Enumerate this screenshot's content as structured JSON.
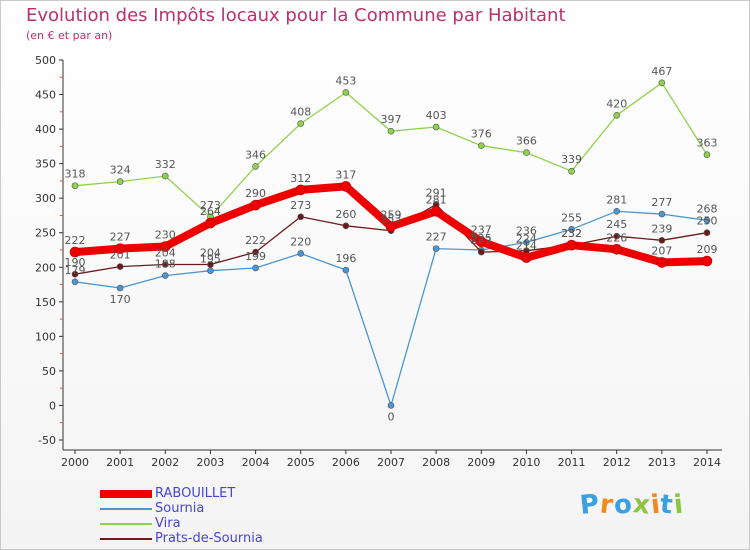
{
  "title": "Evolution des Impôts locaux pour la Commune par Habitant",
  "subtitle": "(en € et par an)",
  "logo_text": "Proxiti",
  "chart_data": {
    "type": "line",
    "x": [
      "2000",
      "2001",
      "2002",
      "2003",
      "2004",
      "2005",
      "2006",
      "2007",
      "2008",
      "2009",
      "2010",
      "2011",
      "2012",
      "2013",
      "2014"
    ],
    "yticks": [
      500,
      450,
      400,
      350,
      300,
      250,
      200,
      150,
      100,
      50,
      0,
      -50
    ],
    "ylim": [
      -50,
      500
    ],
    "grid": false,
    "legend_position": "bottom-left",
    "series": [
      {
        "name": "RABOUILLET",
        "color": "#ee0000",
        "values": [
          222,
          227,
          230,
          264,
          290,
          312,
          317,
          259,
          281,
          237,
          214,
          232,
          226,
          207,
          209
        ],
        "labels": [
          "222",
          "227",
          "230",
          "264",
          "290",
          "312",
          "317",
          "259",
          "281",
          "237",
          "214",
          "232",
          "226",
          "207",
          "209"
        ]
      },
      {
        "name": "Sournia",
        "color": "#4b96d2",
        "values": [
          179,
          170,
          188,
          195,
          199,
          220,
          196,
          0,
          227,
          225,
          236,
          255,
          281,
          277,
          268
        ],
        "labels": [
          "179",
          "170",
          "188",
          "195",
          "199",
          "220",
          "196",
          "0",
          "227",
          "225",
          "236",
          "255",
          "281",
          "277",
          "268"
        ]
      },
      {
        "name": "Vira",
        "color": "#8ed24b",
        "values": [
          318,
          324,
          332,
          273,
          346,
          408,
          453,
          397,
          403,
          376,
          366,
          339,
          420,
          467,
          363
        ],
        "labels": [
          "318",
          "324",
          "332",
          "273",
          "346",
          "408",
          "453",
          "397",
          "403",
          "376",
          "366",
          "339",
          "420",
          "467",
          "363"
        ]
      },
      {
        "name": "Prats-de-Sournia",
        "color": "#6b1a1a",
        "values": [
          190,
          201,
          204,
          204,
          222,
          273,
          260,
          253,
          291,
          222,
          224,
          232,
          245,
          239,
          250
        ],
        "labels": [
          "190",
          "201",
          "204",
          "204",
          "222",
          "273",
          "260",
          "253",
          "291",
          "222",
          "224",
          "232",
          "245",
          "239",
          "250"
        ]
      }
    ]
  },
  "colors": {
    "title": "#b8326d",
    "axis": "#333333",
    "tick_mark": "#e05050",
    "legend_text": "#4646d2"
  }
}
